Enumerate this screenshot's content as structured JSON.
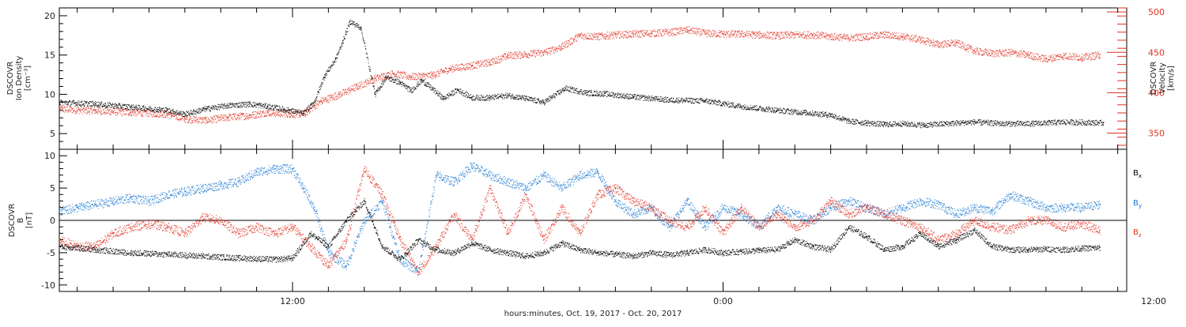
{
  "chart_data": [
    {
      "type": "scatter",
      "panel": "top",
      "ylabel_left": [
        "DSCOVR",
        "Ion Density",
        "[cm⁻³]"
      ],
      "ylabel_right": [
        "DSCOVR",
        "Velocity",
        "[km/s]"
      ],
      "x_range_hours": [
        5.5,
        35.25
      ],
      "y_left_range": [
        3,
        21
      ],
      "y_left_ticks": [
        5,
        10,
        15,
        20
      ],
      "y_right_range": [
        330,
        505
      ],
      "y_right_ticks": [
        350,
        400,
        450,
        500
      ],
      "series": [
        {
          "axis": "left",
          "color": "#000000",
          "x": [
            5.5,
            6.5,
            7.5,
            8.5,
            9.0,
            9.6,
            10.2,
            10.8,
            11.3,
            11.9,
            12.3,
            12.6,
            12.9,
            13.2,
            13.4,
            13.6,
            13.9,
            14.3,
            14.6,
            15.0,
            15.3,
            15.6,
            15.9,
            16.2,
            16.6,
            17.0,
            17.5,
            18.0,
            18.5,
            19.0,
            19.6,
            20.2,
            20.7,
            21.5,
            22.5,
            23.5,
            24.5,
            25.5,
            26.3,
            27.0,
            27.5,
            28.0,
            28.5,
            29.0,
            29.6,
            30.2,
            31.0,
            31.8,
            32.6,
            33.5,
            34.6
          ],
          "y": [
            9.0,
            8.8,
            8.4,
            8.0,
            7.5,
            8.2,
            8.6,
            8.8,
            8.5,
            8.0,
            7.6,
            9.0,
            12.5,
            14.5,
            16.8,
            19.3,
            18.5,
            10.0,
            12.2,
            11.5,
            10.5,
            11.8,
            10.7,
            9.5,
            10.6,
            9.6,
            9.6,
            9.9,
            9.5,
            9.0,
            10.8,
            10.2,
            10.1,
            9.7,
            9.3,
            9.2,
            8.5,
            8.0,
            7.7,
            7.4,
            6.6,
            6.4,
            6.2,
            6.3,
            6.1,
            6.3,
            6.5,
            6.3,
            6.3,
            6.5,
            6.4
          ]
        },
        {
          "axis": "right",
          "color": "#e03020",
          "x": [
            5.5,
            6.5,
            7.5,
            8.5,
            9.0,
            9.6,
            10.2,
            10.8,
            11.3,
            11.9,
            12.3,
            12.8,
            13.3,
            13.8,
            14.3,
            14.8,
            15.3,
            15.9,
            16.4,
            17.0,
            17.5,
            18.0,
            18.5,
            19.0,
            19.5,
            20.0,
            20.5,
            21.0,
            21.5,
            22.0,
            22.5,
            23.0,
            23.5,
            24.0,
            24.5,
            25.0,
            25.5,
            26.0,
            26.5,
            27.0,
            27.5,
            28.0,
            28.5,
            29.0,
            29.5,
            30.0,
            30.5,
            31.0,
            31.5,
            32.0,
            32.5,
            33.0,
            33.5,
            34.0,
            34.5
          ],
          "y": [
            380,
            378,
            376,
            374,
            368,
            366,
            370,
            372,
            376,
            374,
            374,
            390,
            398,
            408,
            418,
            424,
            420,
            422,
            430,
            434,
            438,
            446,
            448,
            450,
            457,
            471,
            470,
            472,
            473,
            474,
            475,
            478,
            474,
            473,
            473,
            472,
            471,
            472,
            472,
            470,
            468,
            470,
            472,
            470,
            466,
            460,
            462,
            452,
            449,
            450,
            447,
            442,
            446,
            444,
            447
          ]
        }
      ]
    },
    {
      "type": "scatter",
      "panel": "bottom",
      "ylabel_left": [
        "DSCOVR",
        "B",
        "[nT]"
      ],
      "x_range_hours": [
        5.5,
        35.25
      ],
      "y_range": [
        -11,
        11
      ],
      "y_ticks": [
        -10,
        -5,
        0,
        5,
        10
      ],
      "zero_line": true,
      "series": [
        {
          "name": "B",
          "subscript": "x",
          "color": "#000000",
          "x": [
            5.5,
            6.5,
            7.5,
            8.5,
            9.5,
            10.5,
            11.5,
            12.0,
            12.5,
            13.0,
            13.5,
            14.0,
            14.5,
            15.0,
            15.5,
            16.0,
            16.5,
            17.0,
            17.5,
            18.0,
            18.5,
            19.0,
            19.5,
            20.0,
            20.5,
            21.0,
            21.5,
            22.0,
            22.5,
            23.0,
            23.5,
            24.0,
            24.5,
            25.0,
            25.5,
            26.0,
            26.5,
            27.0,
            27.5,
            28.0,
            28.5,
            29.0,
            29.5,
            30.0,
            30.5,
            31.0,
            31.5,
            32.0,
            32.5,
            33.0,
            33.5,
            34.0,
            34.5
          ],
          "y": [
            -4.0,
            -4.5,
            -5.0,
            -5.2,
            -5.5,
            -5.8,
            -6.0,
            -5.8,
            -2.0,
            -4.0,
            0.0,
            3.0,
            -4.0,
            -6.0,
            -3.0,
            -4.5,
            -5.0,
            -3.5,
            -4.5,
            -5.0,
            -5.5,
            -5.0,
            -3.5,
            -4.5,
            -5.0,
            -5.2,
            -5.5,
            -5.0,
            -5.3,
            -5.0,
            -4.5,
            -5.0,
            -4.8,
            -4.6,
            -4.5,
            -3.0,
            -4.0,
            -4.5,
            -1.0,
            -2.5,
            -4.5,
            -4.0,
            -2.0,
            -4.0,
            -3.0,
            -1.5,
            -4.0,
            -4.5,
            -4.5,
            -4.4,
            -4.5,
            -4.3,
            -4.2
          ]
        },
        {
          "name": "B",
          "subscript": "y",
          "color": "#1a78d0",
          "x": [
            5.5,
            6.0,
            6.5,
            7.0,
            7.5,
            8.0,
            8.5,
            9.0,
            9.5,
            10.0,
            10.5,
            11.0,
            11.5,
            12.0,
            12.3,
            12.6,
            13.0,
            13.5,
            14.0,
            14.5,
            15.0,
            15.5,
            16.0,
            16.5,
            17.0,
            17.5,
            18.0,
            18.5,
            19.0,
            19.5,
            20.0,
            20.5,
            21.0,
            21.5,
            22.0,
            22.5,
            23.0,
            23.5,
            24.0,
            24.5,
            25.0,
            25.5,
            26.0,
            26.5,
            27.0,
            27.5,
            28.0,
            28.5,
            29.0,
            29.5,
            30.0,
            30.5,
            31.0,
            31.5,
            32.0,
            32.5,
            33.0,
            33.5,
            34.0,
            34.5
          ],
          "y": [
            1.5,
            2.0,
            2.5,
            3.0,
            3.5,
            3.0,
            4.0,
            4.5,
            5.0,
            5.5,
            6.0,
            7.5,
            8.0,
            8.0,
            5.0,
            2.0,
            -5.0,
            -7.0,
            0.0,
            3.0,
            -6.0,
            -8.0,
            7.0,
            6.0,
            8.5,
            7.0,
            6.0,
            5.0,
            7.0,
            5.0,
            7.0,
            7.5,
            3.0,
            1.0,
            2.0,
            -1.0,
            3.0,
            -1.0,
            2.0,
            1.0,
            -1.0,
            2.0,
            1.0,
            0.0,
            2.0,
            3.0,
            2.0,
            1.0,
            2.0,
            3.0,
            2.5,
            1.0,
            2.0,
            1.5,
            4.0,
            3.0,
            2.0,
            2.0,
            2.0,
            2.5
          ]
        },
        {
          "name": "B",
          "subscript": "z",
          "color": "#e03020",
          "x": [
            5.5,
            6.0,
            6.5,
            7.0,
            7.5,
            8.0,
            8.5,
            9.0,
            9.5,
            10.0,
            10.5,
            11.0,
            11.5,
            12.0,
            12.5,
            13.0,
            13.5,
            14.0,
            14.5,
            15.0,
            15.5,
            16.0,
            16.5,
            17.0,
            17.5,
            18.0,
            18.5,
            19.0,
            19.5,
            20.0,
            20.5,
            21.0,
            21.5,
            22.0,
            22.5,
            23.0,
            23.5,
            24.0,
            24.5,
            25.0,
            25.5,
            26.0,
            26.5,
            27.0,
            27.5,
            28.0,
            28.5,
            29.0,
            29.5,
            30.0,
            30.5,
            31.0,
            31.5,
            32.0,
            32.5,
            33.0,
            33.5,
            34.0,
            34.5
          ],
          "y": [
            -3.0,
            -4.0,
            -4.0,
            -2.0,
            -1.0,
            -0.5,
            -1.0,
            -2.0,
            0.5,
            0.0,
            -2.0,
            -1.0,
            -2.0,
            -1.0,
            -4.0,
            -7.0,
            -3.0,
            8.0,
            4.0,
            -3.0,
            -8.0,
            -4.0,
            1.0,
            -3.0,
            5.0,
            -2.0,
            4.0,
            -3.0,
            2.0,
            -2.0,
            4.0,
            5.0,
            3.0,
            2.0,
            0.0,
            -1.0,
            2.0,
            -2.0,
            2.0,
            -1.0,
            1.0,
            -1.0,
            0.0,
            3.0,
            1.0,
            2.0,
            1.0,
            0.0,
            -1.0,
            -3.0,
            -2.0,
            0.0,
            -1.0,
            -1.5,
            0.0,
            0.0,
            -1.0,
            -0.5,
            -1.5
          ]
        }
      ]
    }
  ],
  "axes": {
    "x_ticks": [
      {
        "hour": 12,
        "label": "12:00"
      },
      {
        "hour": 24,
        "label": "0:00"
      },
      {
        "hour": 36,
        "label": "12:00"
      }
    ],
    "xlabel": "hours:minutes, Oct. 19, 2017 - Oct. 20, 2017"
  }
}
